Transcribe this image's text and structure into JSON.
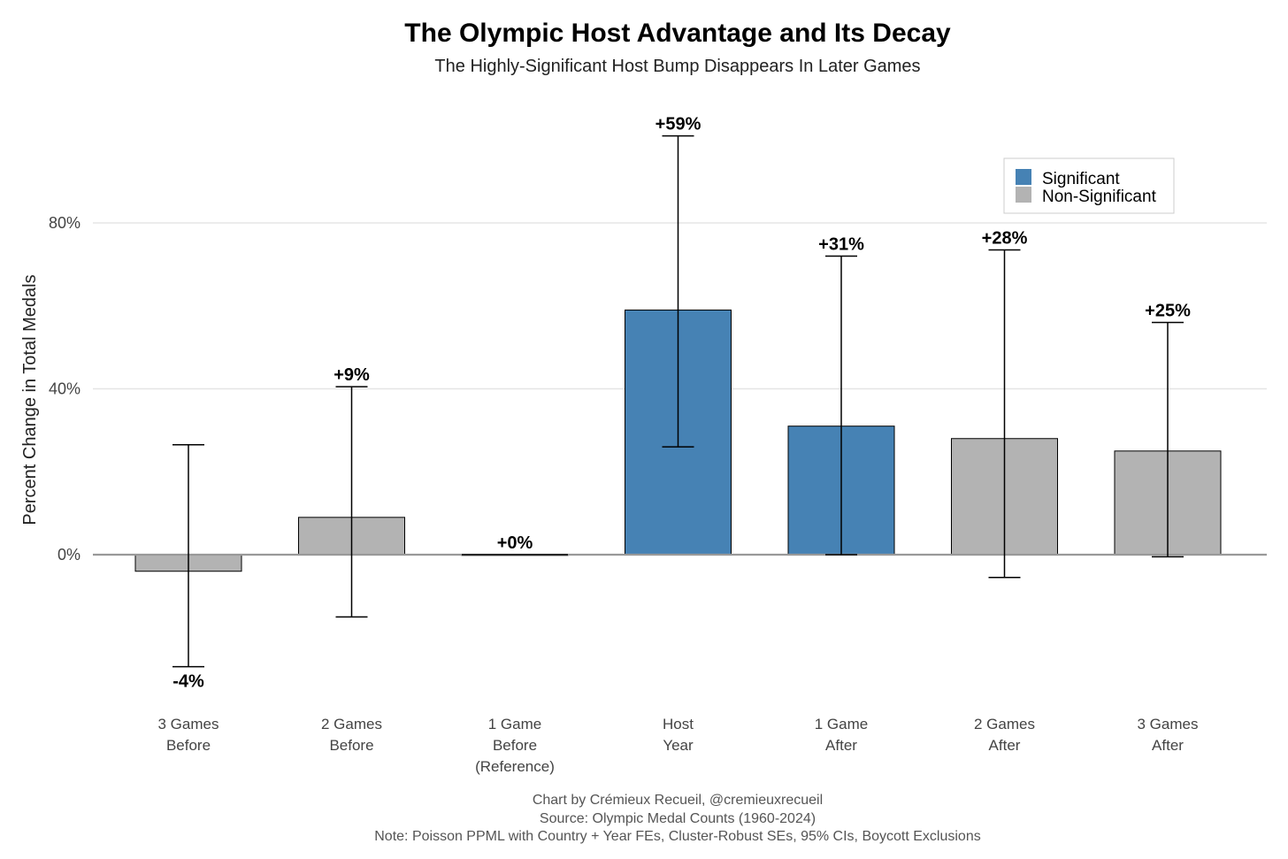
{
  "chart_data": {
    "type": "bar",
    "title": "The Olympic Host Advantage and Its Decay",
    "subtitle": "The Highly-Significant Host Bump Disappears In Later Games",
    "ylabel": "Percent Change in Total Medals",
    "xlabel": "",
    "ylim": [
      -36,
      105
    ],
    "yticks": [
      0,
      40,
      80
    ],
    "ytick_labels": [
      "0%",
      "40%",
      "80%"
    ],
    "grid": true,
    "categories": [
      [
        "3 Games",
        "Before"
      ],
      [
        "2 Games",
        "Before"
      ],
      [
        "1 Game",
        "Before",
        "(Reference)"
      ],
      [
        "Host",
        "Year"
      ],
      [
        "1 Game",
        "After"
      ],
      [
        "2 Games",
        "After"
      ],
      [
        "3 Games",
        "After"
      ]
    ],
    "values": [
      -4,
      9,
      0,
      59,
      31,
      28,
      25
    ],
    "ci_lower": [
      -27,
      -15,
      0,
      26,
      0,
      -5.5,
      -0.5
    ],
    "ci_upper": [
      26.5,
      40.5,
      0,
      101,
      72,
      73.5,
      56
    ],
    "data_labels": [
      "-4%",
      "+9%",
      "+0%",
      "+59%",
      "+31%",
      "+28%",
      "+25%"
    ],
    "significant": [
      false,
      false,
      false,
      true,
      true,
      false,
      false
    ],
    "colors": {
      "significant": "#4682B4",
      "non_significant": "#B3B3B3",
      "edge": "#000000",
      "grid": "#E5E5E5",
      "zero_line": "#999999"
    },
    "legend": {
      "position": "top-right",
      "entries": [
        {
          "label": "Significant",
          "color": "#4682B4"
        },
        {
          "label": "Non-Significant",
          "color": "#B3B3B3"
        }
      ]
    },
    "caption": [
      "Chart by Crémieux Recueil, @cremieuxrecueil",
      "Source: Olympic Medal Counts (1960-2024)",
      "Note: Poisson PPML with Country + Year FEs, Cluster-Robust SEs, 95% CIs, Boycott Exclusions"
    ]
  }
}
